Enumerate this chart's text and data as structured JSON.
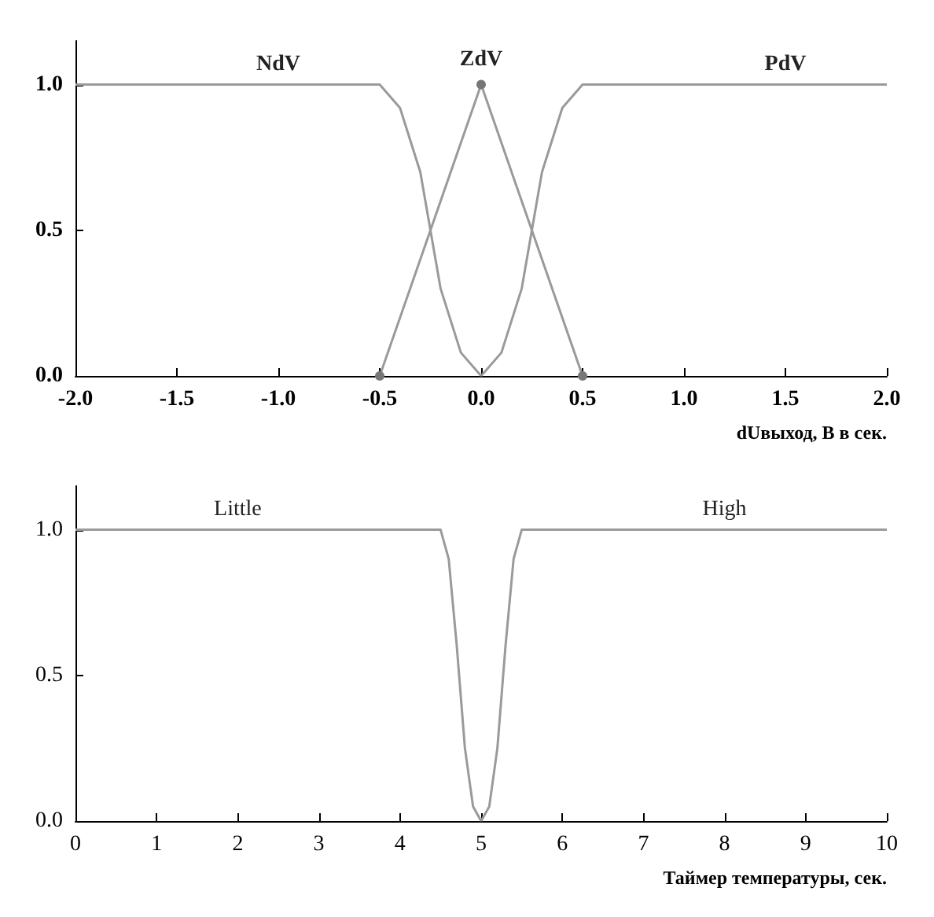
{
  "chart_data": [
    {
      "type": "line",
      "xlabel": "dUвыход, В в сек.",
      "xlim": [
        -2,
        2
      ],
      "ylim": [
        0,
        1.15
      ],
      "xticks": [
        {
          "value": -2,
          "label": "-2.0"
        },
        {
          "value": -1.5,
          "label": "-1.5"
        },
        {
          "value": -1,
          "label": "-1.0"
        },
        {
          "value": -0.5,
          "label": "-0.5"
        },
        {
          "value": 0,
          "label": "0.0"
        },
        {
          "value": 0.5,
          "label": "0.5"
        },
        {
          "value": 1,
          "label": "1.0"
        },
        {
          "value": 1.5,
          "label": "1.5"
        },
        {
          "value": 2,
          "label": "2.0"
        }
      ],
      "yticks": [
        {
          "value": 0,
          "label": "0.0"
        },
        {
          "value": 0.5,
          "label": "0.5"
        },
        {
          "value": 1,
          "label": "1.0"
        }
      ],
      "series": [
        {
          "name": "NdV",
          "color": "#9a9a9a",
          "marker": "none",
          "x": [
            -2,
            -1.5,
            -1,
            -0.5,
            -0.4,
            -0.3,
            -0.25,
            -0.2,
            -0.1,
            0
          ],
          "values": [
            1,
            1,
            1,
            1,
            0.92,
            0.7,
            0.5,
            0.3,
            0.08,
            0
          ]
        },
        {
          "name": "ZdV",
          "color": "#9a9a9a",
          "marker": "circle",
          "x": [
            -0.5,
            0,
            0.5
          ],
          "values": [
            0,
            1,
            0
          ]
        },
        {
          "name": "PdV",
          "color": "#9a9a9a",
          "marker": "none",
          "x": [
            0,
            0.1,
            0.2,
            0.25,
            0.3,
            0.4,
            0.5,
            1,
            1.5,
            2
          ],
          "values": [
            0,
            0.08,
            0.3,
            0.5,
            0.7,
            0.92,
            1,
            1,
            1,
            1
          ]
        }
      ],
      "grid": false,
      "legend": false
    },
    {
      "type": "line",
      "xlabel": "Таймер температуры, сек.",
      "xlim": [
        0,
        10
      ],
      "ylim": [
        0,
        1.15
      ],
      "xticks": [
        0,
        1,
        2,
        3,
        4,
        5,
        6,
        7,
        8,
        9,
        10
      ],
      "yticks": [
        {
          "value": 0,
          "label": "0.0"
        },
        {
          "value": 0.5,
          "label": "0.5"
        },
        {
          "value": 1,
          "label": "1.0"
        }
      ],
      "series": [
        {
          "name": "Little",
          "color": "#9a9a9a",
          "marker": "none",
          "x": [
            0,
            1,
            2,
            3,
            4.5,
            4.6,
            4.7,
            4.8,
            4.9,
            5
          ],
          "values": [
            1,
            1,
            1,
            1,
            1,
            0.9,
            0.6,
            0.25,
            0.05,
            0
          ]
        },
        {
          "name": "High",
          "color": "#9a9a9a",
          "marker": "none",
          "x": [
            5,
            5.1,
            5.2,
            5.3,
            5.4,
            5.5,
            7,
            8,
            9,
            10
          ],
          "values": [
            0,
            0.05,
            0.25,
            0.6,
            0.9,
            1,
            1,
            1,
            1,
            1
          ]
        }
      ],
      "grid": false,
      "legend": false
    }
  ]
}
